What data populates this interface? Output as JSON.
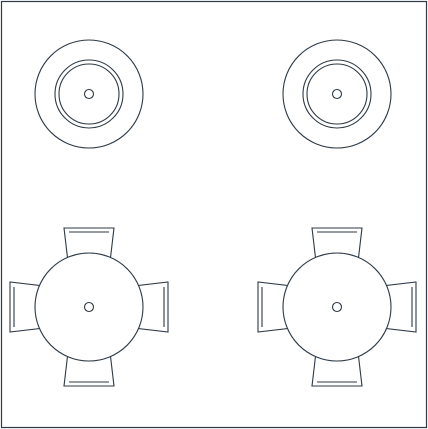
{
  "drawing": {
    "stroke_color": "#2e3a46",
    "background_color": "#ffffff",
    "stools": [
      {
        "name": "stool-top-left"
      },
      {
        "name": "stool-top-right"
      }
    ],
    "tables": [
      {
        "name": "table-bottom-left",
        "chairs": [
          "top",
          "right",
          "bottom",
          "left"
        ]
      },
      {
        "name": "table-bottom-right",
        "chairs": [
          "top",
          "right",
          "bottom",
          "left"
        ]
      }
    ]
  }
}
